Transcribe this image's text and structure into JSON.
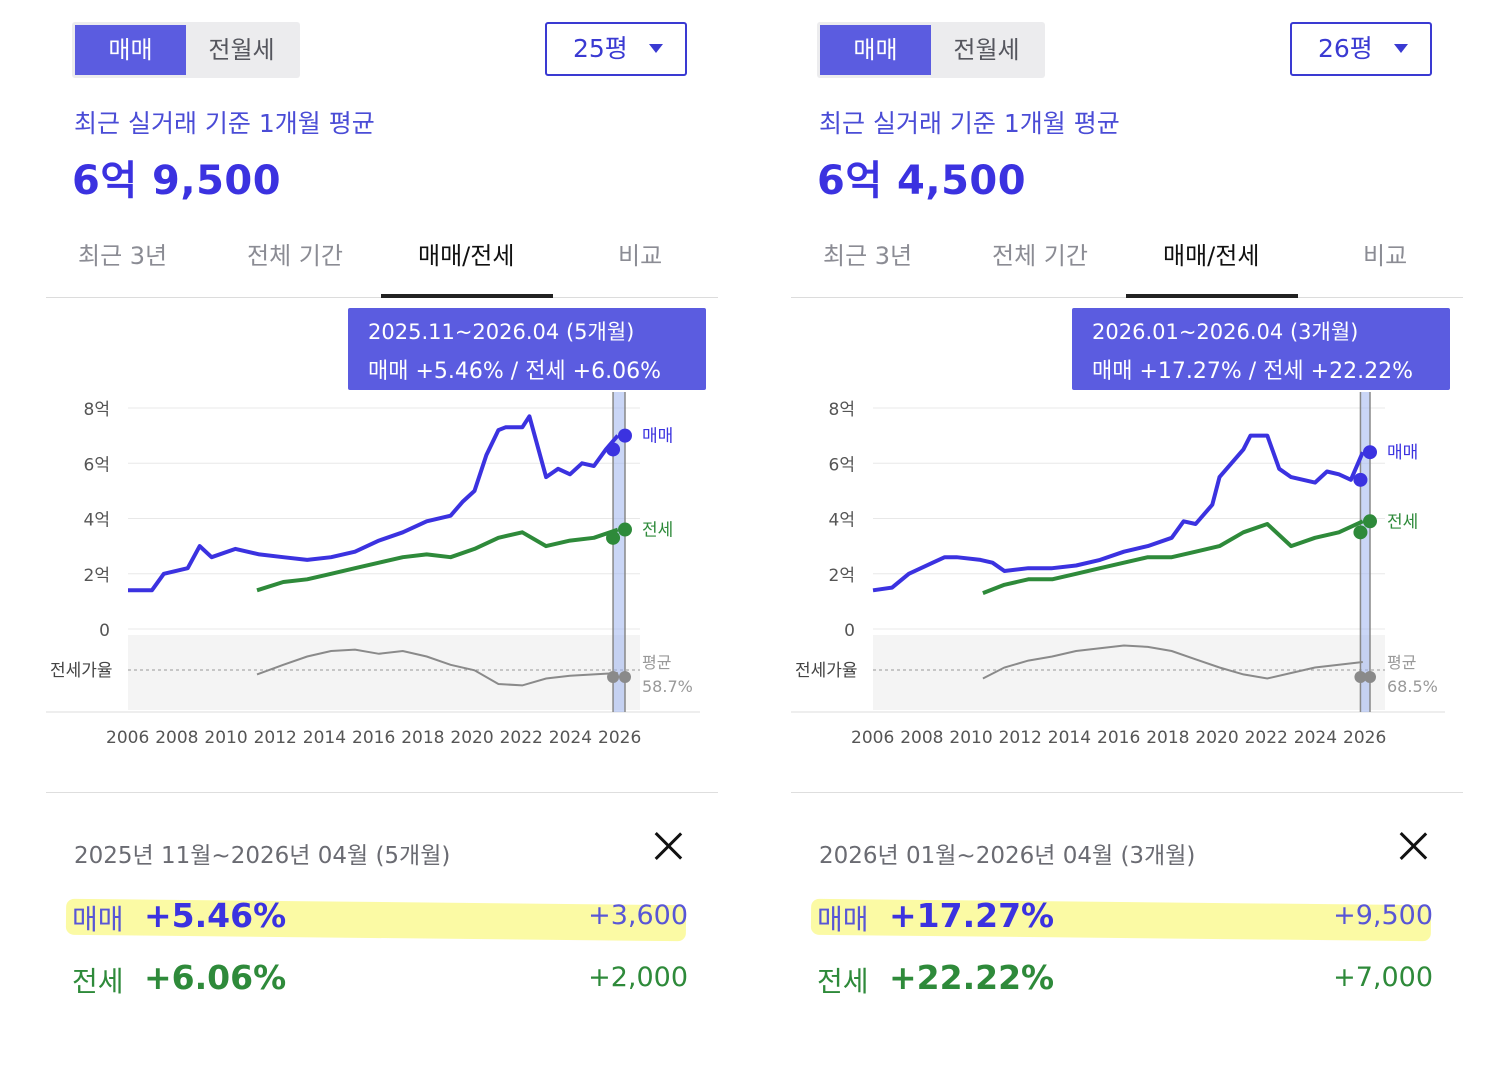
{
  "panels": [
    {
      "tabs": {
        "sale": "매매",
        "rent": "전월세"
      },
      "size": "25평",
      "subtitle": "최근 실거래 기준 1개월 평균",
      "price": "6억 9,500",
      "period_tabs": [
        "최근 3년",
        "전체 기간",
        "매매/전세",
        "비교"
      ],
      "tooltip": {
        "period": "2025.11~2026.04 (5개월)",
        "rates": "매매 +5.46%  /  전세 +6.06%"
      },
      "selected_period": "2025년 11월~2026년 04월 (5개월)",
      "sale": {
        "label": "매매",
        "pct": "+5.46%",
        "amount": "+3,600"
      },
      "jeonse": {
        "label": "전세",
        "pct": "+6.06%",
        "amount": "+2,000"
      },
      "chart_data": {
        "type": "line",
        "y_ticks": [
          "8억",
          "6억",
          "4억",
          "2억",
          "0"
        ],
        "ylim": [
          0,
          8
        ],
        "x_ticks": [
          "2006",
          "2008",
          "2010",
          "2012",
          "2014",
          "2016",
          "2018",
          "2020",
          "2022",
          "2024",
          "2026"
        ],
        "series_labels": {
          "sale": "매매",
          "jeonse": "전세"
        },
        "ratio_label": "전세가율",
        "avg_label": "평균",
        "avg_ratio": "58.7%",
        "series": [
          {
            "name": "매매",
            "x": [
              2005.5,
              2006.5,
              2007.0,
              2008.0,
              2008.5,
              2009.0,
              2010.0,
              2011.0,
              2012.0,
              2013.0,
              2014.0,
              2015.0,
              2016.0,
              2017.0,
              2018.0,
              2019.0,
              2019.5,
              2020.0,
              2020.5,
              2021.0,
              2021.3,
              2022.0,
              2022.3,
              2023.0,
              2023.5,
              2024.0,
              2024.5,
              2025.0,
              2025.5,
              2026.0
            ],
            "y": [
              1.4,
              1.4,
              2.0,
              2.2,
              3.0,
              2.6,
              2.9,
              2.7,
              2.6,
              2.5,
              2.6,
              2.8,
              3.2,
              3.5,
              3.9,
              4.1,
              4.6,
              5.0,
              6.3,
              7.2,
              7.3,
              7.3,
              7.7,
              5.5,
              5.8,
              5.6,
              6.0,
              5.9,
              6.5,
              7.0
            ]
          },
          {
            "name": "전세",
            "x": [
              2010.9,
              2012.0,
              2013.0,
              2014.0,
              2015.0,
              2016.0,
              2017.0,
              2018.0,
              2019.0,
              2020.0,
              2021.0,
              2022.0,
              2023.0,
              2024.0,
              2025.0,
              2026.0
            ],
            "y": [
              1.4,
              1.7,
              1.8,
              2.0,
              2.2,
              2.4,
              2.6,
              2.7,
              2.6,
              2.9,
              3.3,
              3.5,
              3.0,
              3.2,
              3.3,
              3.6
            ]
          },
          {
            "name": "전세가율",
            "x": [
              2010.9,
              2012.0,
              2013.0,
              2014.0,
              2015.0,
              2016.0,
              2017.0,
              2018.0,
              2019.0,
              2020.0,
              2021.0,
              2022.0,
              2023.0,
              2024.0,
              2025.0,
              2026.0
            ],
            "y": [
              55,
              62,
              68,
              72,
              73,
              70,
              72,
              68,
              62,
              58,
              48,
              47,
              52,
              54,
              55,
              56
            ]
          }
        ],
        "highlight_x": [
          2025.8,
          2026.3
        ]
      }
    },
    {
      "tabs": {
        "sale": "매매",
        "rent": "전월세"
      },
      "size": "26평",
      "subtitle": "최근 실거래 기준 1개월 평균",
      "price": "6억 4,500",
      "period_tabs": [
        "최근 3년",
        "전체 기간",
        "매매/전세",
        "비교"
      ],
      "tooltip": {
        "period": "2026.01~2026.04 (3개월)",
        "rates": "매매 +17.27%  /  전세 +22.22%"
      },
      "selected_period": "2026년 01월~2026년 04월 (3개월)",
      "sale": {
        "label": "매매",
        "pct": "+17.27%",
        "amount": "+9,500"
      },
      "jeonse": {
        "label": "전세",
        "pct": "+22.22%",
        "amount": "+7,000"
      },
      "chart_data": {
        "type": "line",
        "y_ticks": [
          "8억",
          "6억",
          "4억",
          "2억",
          "0"
        ],
        "ylim": [
          0,
          8
        ],
        "x_ticks": [
          "2006",
          "2008",
          "2010",
          "2012",
          "2014",
          "2016",
          "2018",
          "2020",
          "2022",
          "2024",
          "2026"
        ],
        "series_labels": {
          "sale": "매매",
          "jeonse": "전세"
        },
        "ratio_label": "전세가율",
        "avg_label": "평균",
        "avg_ratio": "68.5%",
        "series": [
          {
            "name": "매매",
            "x": [
              2005.5,
              2006.3,
              2007.0,
              2008.0,
              2008.5,
              2009.0,
              2010.0,
              2010.5,
              2011.0,
              2012.0,
              2013.0,
              2014.0,
              2015.0,
              2016.0,
              2017.0,
              2018.0,
              2018.5,
              2019.0,
              2019.7,
              2020.0,
              2020.5,
              2021.0,
              2021.3,
              2022.0,
              2022.5,
              2023.0,
              2024.0,
              2024.5,
              2025.0,
              2025.5,
              2026.0
            ],
            "y": [
              1.4,
              1.5,
              2.0,
              2.4,
              2.6,
              2.6,
              2.5,
              2.4,
              2.1,
              2.2,
              2.2,
              2.3,
              2.5,
              2.8,
              3.0,
              3.3,
              3.9,
              3.8,
              4.5,
              5.5,
              6.0,
              6.5,
              7.0,
              7.0,
              5.8,
              5.5,
              5.3,
              5.7,
              5.6,
              5.4,
              6.4
            ]
          },
          {
            "name": "전세",
            "x": [
              2010.1,
              2011.0,
              2012.0,
              2013.0,
              2014.0,
              2015.0,
              2016.0,
              2017.0,
              2018.0,
              2019.0,
              2020.0,
              2021.0,
              2022.0,
              2023.0,
              2024.0,
              2025.0,
              2026.0
            ],
            "y": [
              1.3,
              1.6,
              1.8,
              1.8,
              2.0,
              2.2,
              2.4,
              2.6,
              2.6,
              2.8,
              3.0,
              3.5,
              3.8,
              3.0,
              3.3,
              3.5,
              3.9
            ]
          },
          {
            "name": "전세가율",
            "x": [
              2010.1,
              2011.0,
              2012.0,
              2013.0,
              2014.0,
              2015.0,
              2016.0,
              2017.0,
              2018.0,
              2019.0,
              2020.0,
              2021.0,
              2022.0,
              2023.0,
              2024.0,
              2025.0,
              2026.0
            ],
            "y": [
              52,
              60,
              65,
              68,
              72,
              74,
              76,
              75,
              72,
              66,
              60,
              55,
              52,
              56,
              60,
              62,
              64
            ]
          }
        ],
        "highlight_x": [
          2025.9,
          2026.3
        ]
      }
    }
  ],
  "colors": {
    "sale": "#3b32e0",
    "jeonse": "#2e8a3a",
    "ratio": "#8a8a8a",
    "highlight": "#fbf99a",
    "accent": "#5b5ce0"
  }
}
